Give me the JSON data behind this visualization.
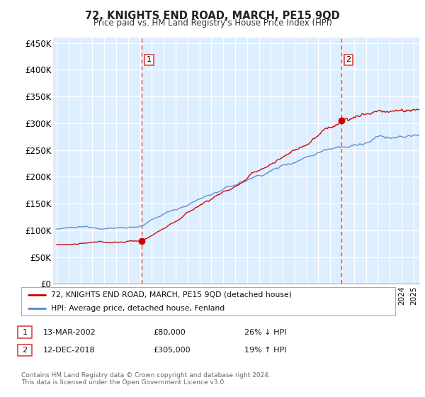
{
  "title": "72, KNIGHTS END ROAD, MARCH, PE15 9QD",
  "subtitle": "Price paid vs. HM Land Registry's House Price Index (HPI)",
  "ylabel_ticks": [
    "£0",
    "£50K",
    "£100K",
    "£150K",
    "£200K",
    "£250K",
    "£300K",
    "£350K",
    "£400K",
    "£450K"
  ],
  "ytick_values": [
    0,
    50000,
    100000,
    150000,
    200000,
    250000,
    300000,
    350000,
    400000,
    450000
  ],
  "ylim": [
    0,
    460000
  ],
  "xlim_start": 1994.7,
  "xlim_end": 2025.5,
  "sale1_x": 2002.17,
  "sale1_y": 80000,
  "sale2_x": 2018.92,
  "sale2_y": 305000,
  "vline1_x": 2002.17,
  "vline2_x": 2018.92,
  "legend_line1": "72, KNIGHTS END ROAD, MARCH, PE15 9QD (detached house)",
  "legend_line2": "HPI: Average price, detached house, Fenland",
  "annotation1_date": "13-MAR-2002",
  "annotation1_price": "£80,000",
  "annotation1_hpi": "26% ↓ HPI",
  "annotation2_date": "12-DEC-2018",
  "annotation2_price": "£305,000",
  "annotation2_hpi": "19% ↑ HPI",
  "footnote": "Contains HM Land Registry data © Crown copyright and database right 2024.\nThis data is licensed under the Open Government Licence v3.0.",
  "line_color_red": "#cc0000",
  "line_color_blue": "#5588cc",
  "vline_color": "#dd4444",
  "grid_color": "#cccccc",
  "bg_fill_color": "#ddeeff",
  "background_color": "#ffffff"
}
